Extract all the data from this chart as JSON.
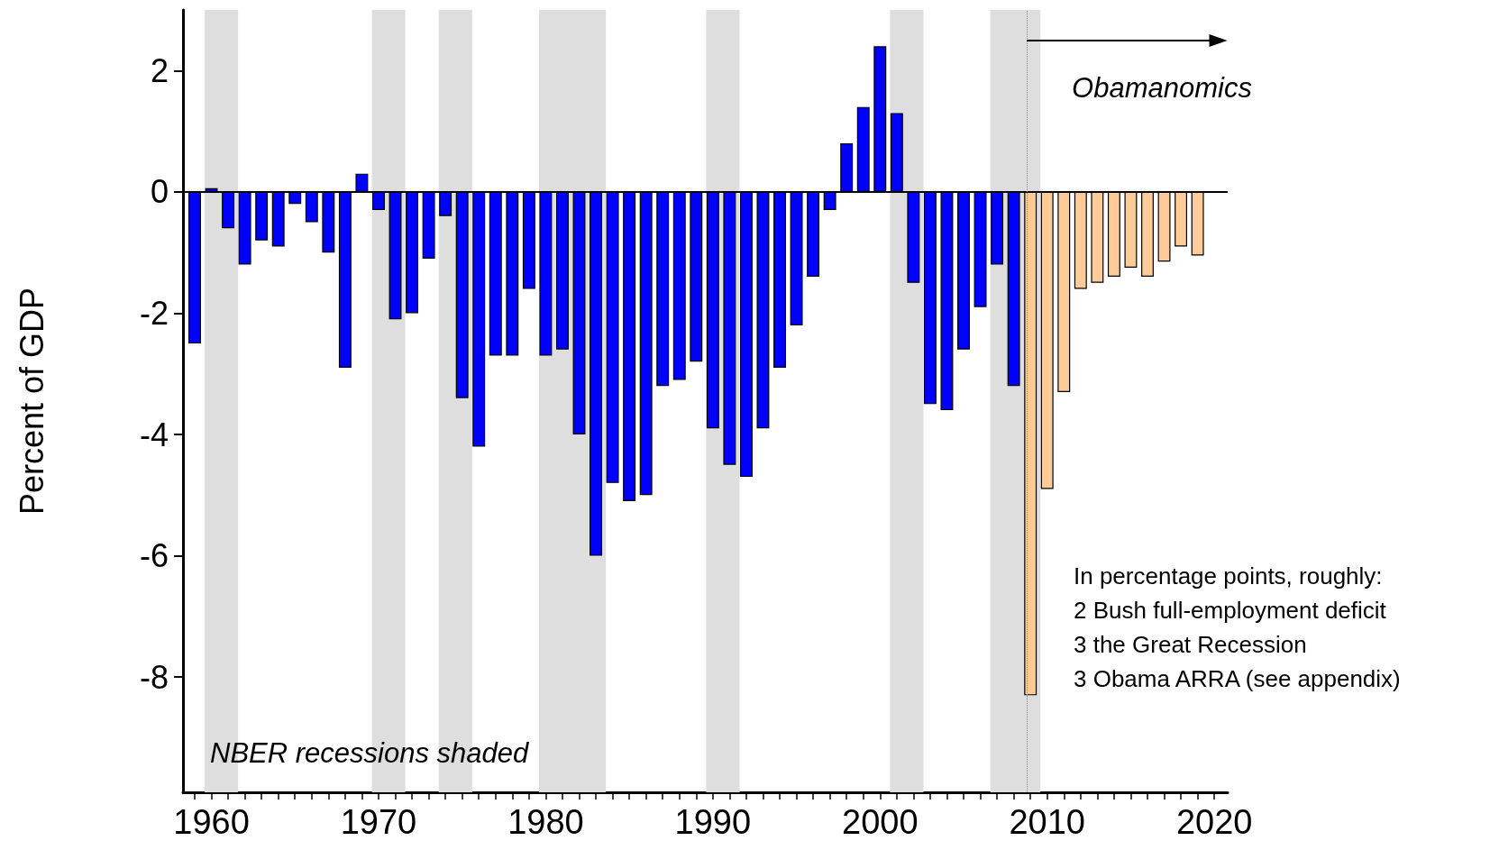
{
  "chart_data": {
    "type": "bar",
    "ylabel": "Percent of GDP",
    "xlim": [
      1958.3,
      2020.8
    ],
    "xticks": [
      {
        "value": 1959,
        "label": null
      },
      1960,
      {
        "value": 1961,
        "label": null
      },
      {
        "value": 1962,
        "label": null
      },
      {
        "value": 1963,
        "label": null
      },
      {
        "value": 1964,
        "label": null
      },
      {
        "value": 1965,
        "label": null
      },
      {
        "value": 1966,
        "label": null
      },
      {
        "value": 1967,
        "label": null
      },
      {
        "value": 1968,
        "label": null
      },
      {
        "value": 1969,
        "label": null
      },
      1970,
      {
        "value": 1971,
        "label": null
      },
      {
        "value": 1972,
        "label": null
      },
      {
        "value": 1973,
        "label": null
      },
      {
        "value": 1974,
        "label": null
      },
      {
        "value": 1975,
        "label": null
      },
      {
        "value": 1976,
        "label": null
      },
      {
        "value": 1977,
        "label": null
      },
      {
        "value": 1978,
        "label": null
      },
      {
        "value": 1979,
        "label": null
      },
      1980,
      {
        "value": 1981,
        "label": null
      },
      {
        "value": 1982,
        "label": null
      },
      {
        "value": 1983,
        "label": null
      },
      {
        "value": 1984,
        "label": null
      },
      {
        "value": 1985,
        "label": null
      },
      {
        "value": 1986,
        "label": null
      },
      {
        "value": 1987,
        "label": null
      },
      {
        "value": 1988,
        "label": null
      },
      {
        "value": 1989,
        "label": null
      },
      1990,
      {
        "value": 1991,
        "label": null
      },
      {
        "value": 1992,
        "label": null
      },
      {
        "value": 1993,
        "label": null
      },
      {
        "value": 1994,
        "label": null
      },
      {
        "value": 1995,
        "label": null
      },
      {
        "value": 1996,
        "label": null
      },
      {
        "value": 1997,
        "label": null
      },
      {
        "value": 1998,
        "label": null
      },
      {
        "value": 1999,
        "label": null
      },
      2000,
      {
        "value": 2001,
        "label": null
      },
      {
        "value": 2002,
        "label": null
      },
      {
        "value": 2003,
        "label": null
      },
      {
        "value": 2004,
        "label": null
      },
      {
        "value": 2005,
        "label": null
      },
      {
        "value": 2006,
        "label": null
      },
      {
        "value": 2007,
        "label": null
      },
      {
        "value": 2008,
        "label": null
      },
      {
        "value": 2009,
        "label": null
      },
      2010,
      {
        "value": 2011,
        "label": null
      },
      {
        "value": 2012,
        "label": null
      },
      {
        "value": 2013,
        "label": null
      },
      {
        "value": 2014,
        "label": null
      },
      {
        "value": 2015,
        "label": null
      },
      {
        "value": 2016,
        "label": null
      },
      {
        "value": 2017,
        "label": null
      },
      {
        "value": 2018,
        "label": null
      },
      {
        "value": 2019,
        "label": null
      },
      2020
    ],
    "ylim": [
      -9.9,
      3
    ],
    "yticks": [
      -8,
      -6,
      -4,
      -2,
      0,
      2
    ],
    "series": [
      {
        "color": "#0000ff",
        "x": [
          1959,
          1960,
          1961,
          1962,
          1963,
          1964,
          1965,
          1966,
          1967,
          1968,
          1969,
          1970,
          1971,
          1972,
          1973,
          1974,
          1975,
          1976,
          1977,
          1978,
          1979,
          1980,
          1981,
          1982,
          1983,
          1984,
          1985,
          1986,
          1987,
          1988,
          1989,
          1990,
          1991,
          1992,
          1993,
          1994,
          1995,
          1996,
          1997,
          1998,
          1999,
          2000,
          2001,
          2002,
          2003,
          2004,
          2005,
          2006,
          2007,
          2008
        ],
        "values": [
          -2.5,
          0.06,
          -0.6,
          -1.2,
          -0.8,
          -0.9,
          -0.2,
          -0.5,
          -1.0,
          -2.9,
          0.3,
          -0.3,
          -2.1,
          -2.0,
          -1.1,
          -0.4,
          -3.4,
          -4.2,
          -2.7,
          -2.7,
          -1.6,
          -2.7,
          -2.6,
          -4.0,
          -6.0,
          -4.8,
          -5.1,
          -5.0,
          -3.2,
          -3.1,
          -2.8,
          -3.9,
          -4.5,
          -4.7,
          -3.9,
          -2.9,
          -2.2,
          -1.4,
          -0.3,
          0.8,
          1.4,
          2.4,
          1.3,
          -1.5,
          -3.5,
          -3.6,
          -2.6,
          -1.9,
          -1.2,
          -3.2
        ]
      },
      {
        "color": "#ffcc99",
        "x": [
          2009,
          2010,
          2011,
          2012,
          2013,
          2014,
          2015,
          2016,
          2017,
          2018,
          2019
        ],
        "values": [
          -8.3,
          -4.9,
          -3.3,
          -1.6,
          -1.5,
          -1.4,
          -1.25,
          -1.4,
          -1.15,
          -0.9,
          -1.05
        ]
      }
    ],
    "bands": [
      {
        "axis": "x",
        "from": 1959.6,
        "to": 1961.6,
        "color": "#dedede"
      },
      {
        "axis": "x",
        "from": 1969.6,
        "to": 1971.6,
        "color": "#dedede"
      },
      {
        "axis": "x",
        "from": 1973.6,
        "to": 1975.6,
        "color": "#dedede"
      },
      {
        "axis": "x",
        "from": 1979.6,
        "to": 1983.6,
        "color": "#dedede"
      },
      {
        "axis": "x",
        "from": 1989.6,
        "to": 1991.6,
        "color": "#dedede"
      },
      {
        "axis": "x",
        "from": 2000.6,
        "to": 2002.6,
        "color": "#dedede"
      },
      {
        "axis": "x",
        "from": 2006.6,
        "to": 2009.6,
        "color": "#dedede"
      }
    ],
    "ref_lines": [
      {
        "axis": "y",
        "value": 0,
        "color": "#000000",
        "line_style": "solid"
      },
      {
        "axis": "x",
        "value": 2008.8,
        "color": "#888888",
        "line_style": "dotted"
      }
    ],
    "annotations": [
      {
        "text": "Obamanomics",
        "x": 2008.8,
        "y": 2.5
      },
      "NBER recessions shaded",
      "In percentage points, roughly:\n2 Bush full-employment deficit\n3 the Great Recession\n3 Obama ARRA (see appendix)"
    ]
  }
}
